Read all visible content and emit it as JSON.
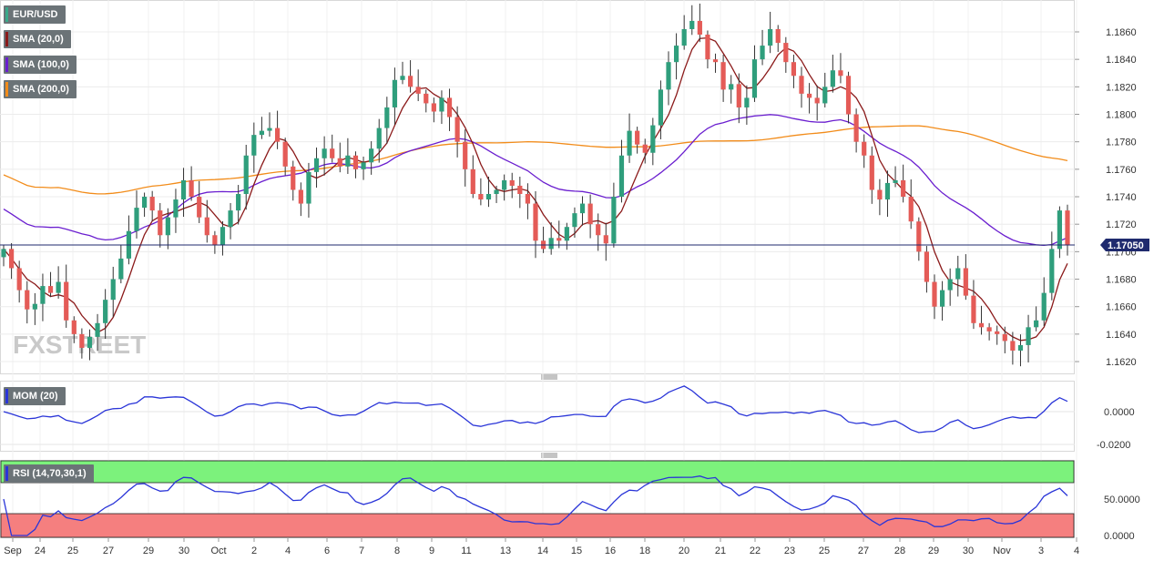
{
  "chart_data": {
    "type": "candlestick",
    "symbol": "EUR/USD",
    "current_price": "1.17050",
    "x_labels": [
      "Sep",
      "24",
      "25",
      "27",
      "29",
      "30",
      "Oct",
      "2",
      "4",
      "6",
      "7",
      "8",
      "9",
      "11",
      "13",
      "14",
      "15",
      "16",
      "18",
      "20",
      "21",
      "22",
      "23",
      "25",
      "27",
      "28",
      "29",
      "30",
      "Nov",
      "3",
      "4"
    ],
    "price_axis": {
      "ticks": [
        "1.1620",
        "1.1640",
        "1.1660",
        "1.1680",
        "1.1700",
        "1.1720",
        "1.1740",
        "1.1760",
        "1.1780",
        "1.1800",
        "1.1820",
        "1.1840",
        "1.1860"
      ],
      "range": [
        1.1612,
        1.188
      ]
    },
    "indicators": [
      {
        "name": "SMA (20,0)",
        "color": "#8b1a1a"
      },
      {
        "name": "SMA (100,0)",
        "color": "#6a1ecf"
      },
      {
        "name": "SMA (200,0)",
        "color": "#f28c1a"
      }
    ],
    "close_path": [
      1.1702,
      1.1688,
      1.1672,
      1.1658,
      1.1662,
      1.1675,
      1.167,
      1.1678,
      1.165,
      1.164,
      1.163,
      1.1638,
      1.1648,
      1.1665,
      1.168,
      1.1695,
      1.1715,
      1.1732,
      1.174,
      1.173,
      1.1712,
      1.1725,
      1.1738,
      1.1752,
      1.174,
      1.1725,
      1.1712,
      1.1705,
      1.1718,
      1.173,
      1.1742,
      1.177,
      1.1785,
      1.1788,
      1.179,
      1.178,
      1.1762,
      1.1745,
      1.1735,
      1.1758,
      1.1768,
      1.1775,
      1.1768,
      1.1762,
      1.177,
      1.176,
      1.1765,
      1.1775,
      1.179,
      1.1805,
      1.1825,
      1.1828,
      1.182,
      1.1815,
      1.1808,
      1.1802,
      1.1812,
      1.1798,
      1.178,
      1.176,
      1.1742,
      1.1738,
      1.1742,
      1.1745,
      1.1752,
      1.1748,
      1.1742,
      1.1735,
      1.1708,
      1.1702,
      1.171,
      1.1708,
      1.1718,
      1.1728,
      1.1735,
      1.172,
      1.1712,
      1.1706,
      1.174,
      1.177,
      1.1788,
      1.1778,
      1.1772,
      1.1792,
      1.1818,
      1.1838,
      1.185,
      1.1862,
      1.1868,
      1.1858,
      1.184,
      1.1838,
      1.1818,
      1.1822,
      1.1805,
      1.1812,
      1.184,
      1.185,
      1.1862,
      1.1852,
      1.1838,
      1.1828,
      1.1815,
      1.1812,
      1.1808,
      1.182,
      1.1832,
      1.1828,
      1.18,
      1.178,
      1.177,
      1.1745,
      1.1738,
      1.175,
      1.1752,
      1.174,
      1.1722,
      1.17,
      1.1678,
      1.166,
      1.1672,
      1.168,
      1.1688,
      1.1668,
      1.1648,
      1.1645,
      1.1642,
      1.164,
      1.1635,
      1.1628,
      1.1632,
      1.1645,
      1.165,
      1.167,
      1.1702,
      1.173,
      1.1705
    ],
    "mom": {
      "name": "MOM (20)",
      "color": "#2a35d8",
      "ticks": [
        "0.0000",
        "-0.0200"
      ]
    },
    "rsi": {
      "name": "RSI (14,70,30,1)",
      "color": "#2a35d8",
      "ticks": [
        "50.0000",
        "0.0000"
      ],
      "overbought": 70,
      "oversold": 30
    },
    "watermark": "FXSTREET"
  }
}
